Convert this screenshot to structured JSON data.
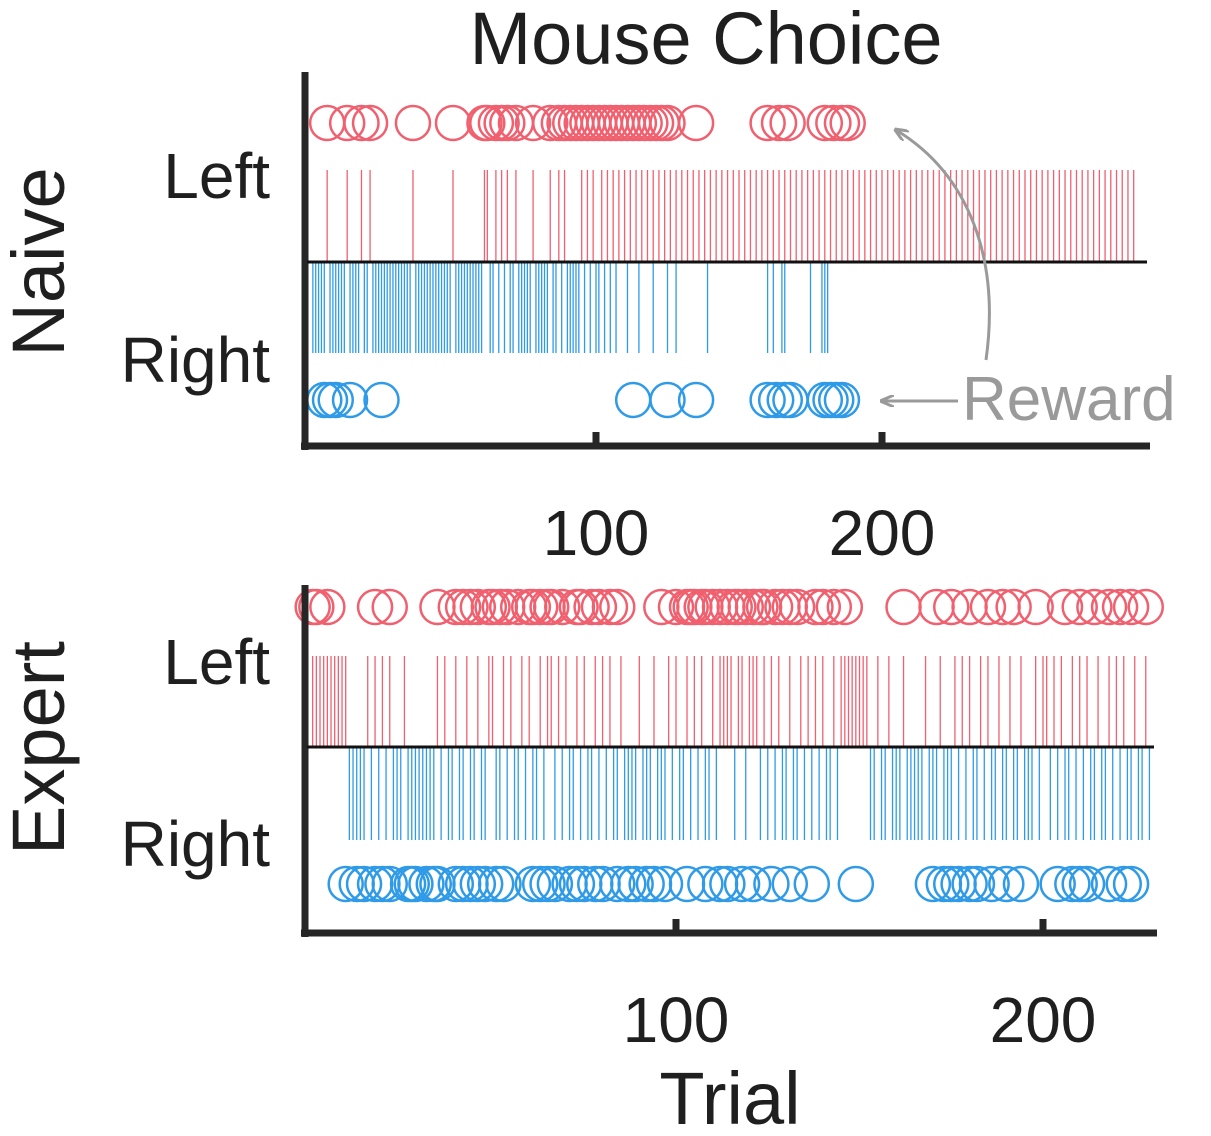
{
  "colors": {
    "left": "#f0606f",
    "right": "#2f9be8",
    "axis": "#262626",
    "annotation": "#9a9a9a"
  },
  "chart_data": {
    "type": "scatter",
    "title": "Mouse Choice",
    "xlabel": "Trial",
    "annotation": "Reward",
    "grid": false,
    "panels": [
      {
        "name": "Naive",
        "xlim": [
          0,
          290
        ],
        "xticks": [
          100,
          200
        ],
        "xticklabels": [
          "100",
          "200"
        ],
        "ylabels": [
          "Left",
          "Right"
        ],
        "left_choice_trials": [
          6,
          13,
          18,
          21,
          36,
          50,
          62,
          61,
          65,
          67,
          69,
          72,
          78,
          84,
          87,
          89,
          95,
          97,
          99,
          102,
          104,
          106,
          108,
          110,
          112,
          114,
          116,
          118,
          120,
          122,
          124,
          126,
          128,
          130,
          132,
          134,
          136,
          138,
          140,
          142,
          144,
          146,
          148,
          150,
          152,
          154,
          156,
          158,
          160,
          162,
          164,
          166,
          168,
          170,
          172,
          174,
          176,
          178,
          180,
          182,
          184,
          186,
          188,
          190,
          192,
          194,
          196,
          198,
          200,
          202,
          204,
          206,
          208,
          210,
          212,
          214,
          216,
          218,
          220,
          222,
          224,
          226,
          228,
          230,
          232,
          234,
          236,
          238,
          240,
          242,
          244,
          246,
          248,
          250,
          252,
          254,
          256,
          258,
          260,
          262,
          264,
          266,
          268,
          270,
          272,
          274,
          276,
          278,
          280,
          282,
          284,
          286,
          288
        ],
        "right_choice_trials": [
          1,
          2,
          3,
          4,
          5,
          7,
          8,
          9,
          10,
          11,
          12,
          14,
          15,
          16,
          17,
          19,
          20,
          22,
          23,
          24,
          25,
          26,
          27,
          28,
          29,
          30,
          31,
          32,
          33,
          34,
          35,
          37,
          38,
          39,
          40,
          41,
          42,
          43,
          44,
          45,
          46,
          47,
          48,
          49,
          51,
          52,
          53,
          54,
          55,
          56,
          57,
          58,
          59,
          60,
          63,
          64,
          66,
          68,
          70,
          71,
          73,
          74,
          75,
          76,
          77,
          79,
          80,
          81,
          82,
          83,
          85,
          86,
          88,
          90,
          91,
          92,
          93,
          94,
          96,
          98,
          100,
          101,
          103,
          105,
          107,
          111,
          115,
          120,
          125,
          128,
          139,
          160,
          162,
          165,
          166,
          175,
          179,
          180,
          181
        ],
        "left_reward_trials": [
          6,
          13,
          18,
          21,
          36,
          50,
          61,
          62,
          65,
          67,
          69,
          72,
          78,
          84,
          87,
          89,
          91,
          93,
          95,
          97,
          99,
          101,
          103,
          105,
          107,
          109,
          111,
          113,
          115,
          117,
          119,
          121,
          123,
          125,
          135,
          160,
          164,
          167,
          180,
          183,
          186,
          188
        ],
        "right_reward_trials": [
          5,
          7,
          9,
          14,
          25,
          113,
          125,
          135,
          160,
          163,
          166,
          168,
          180,
          182,
          184,
          186
        ]
      },
      {
        "name": "Expert",
        "xlim": [
          0,
          230
        ],
        "xticks": [
          100,
          200
        ],
        "xticklabels": [
          "100",
          "200"
        ],
        "ylabels": [
          "Left",
          "Right"
        ],
        "left_choice_trials": [
          1,
          2,
          3,
          4,
          5,
          6,
          7,
          8,
          9,
          10,
          16,
          18,
          20,
          22,
          26,
          35,
          37,
          40,
          43,
          46,
          49,
          50,
          53,
          55,
          58,
          60,
          63,
          65,
          66,
          68,
          70,
          73,
          75,
          78,
          80,
          82,
          85,
          90,
          94,
          98,
          100,
          103,
          105,
          107,
          110,
          112,
          113,
          114,
          115,
          117,
          118,
          120,
          121,
          122,
          124,
          126,
          128,
          131,
          134,
          136,
          138,
          140,
          143,
          145,
          146,
          147,
          148,
          149,
          150,
          151,
          152,
          155,
          158,
          162,
          168,
          172,
          176,
          178,
          180,
          183,
          185,
          188,
          191,
          194,
          198,
          200,
          201,
          203,
          205,
          208,
          210,
          212,
          215,
          218,
          220,
          222,
          225,
          228
        ],
        "right_choice_trials": [
          11,
          12,
          13,
          14,
          15,
          17,
          19,
          21,
          23,
          24,
          25,
          27,
          28,
          29,
          30,
          31,
          32,
          33,
          34,
          36,
          38,
          39,
          41,
          42,
          44,
          45,
          47,
          48,
          51,
          52,
          54,
          56,
          57,
          59,
          61,
          62,
          64,
          67,
          69,
          71,
          72,
          74,
          76,
          77,
          79,
          81,
          83,
          84,
          86,
          87,
          88,
          89,
          91,
          92,
          93,
          95,
          96,
          97,
          99,
          101,
          102,
          104,
          106,
          108,
          109,
          111,
          116,
          119,
          123,
          125,
          127,
          129,
          130,
          132,
          133,
          135,
          137,
          139,
          141,
          142,
          144,
          153,
          154,
          156,
          157,
          159,
          160,
          161,
          163,
          164,
          165,
          166,
          167,
          169,
          170,
          171,
          173,
          174,
          175,
          177,
          179,
          181,
          182,
          184,
          186,
          187,
          189,
          190,
          192,
          193,
          195,
          196,
          197,
          199,
          202,
          204,
          206,
          207,
          209,
          211,
          213,
          214,
          216,
          217,
          219,
          221,
          223,
          224,
          226,
          227,
          229
        ],
        "left_reward_trials": [
          1,
          2,
          5,
          18,
          22,
          35,
          40,
          42,
          44,
          46,
          49,
          50,
          52,
          54,
          57,
          60,
          61,
          63,
          65,
          66,
          69,
          73,
          74,
          77,
          79,
          82,
          84,
          96,
          100,
          103,
          104,
          105,
          107,
          108,
          110,
          112,
          114,
          116,
          117,
          119,
          121,
          123,
          124,
          127,
          129,
          131,
          133,
          138,
          140,
          143,
          146,
          162,
          171,
          175,
          180,
          185,
          189,
          192,
          198,
          206,
          210,
          214,
          218,
          221,
          224,
          228
        ],
        "right_reward_trials": [
          10,
          13,
          15,
          18,
          20,
          22,
          27,
          28,
          29,
          32,
          34,
          35,
          40,
          42,
          44,
          46,
          48,
          51,
          53,
          61,
          63,
          65,
          67,
          71,
          73,
          75,
          78,
          80,
          84,
          87,
          89,
          92,
          94,
          97,
          103,
          108,
          112,
          114,
          118,
          121,
          126,
          131,
          137,
          149,
          170,
          173,
          175,
          177,
          180,
          182,
          186,
          190,
          194,
          204,
          208,
          210,
          212,
          218,
          222,
          224
        ]
      }
    ]
  }
}
